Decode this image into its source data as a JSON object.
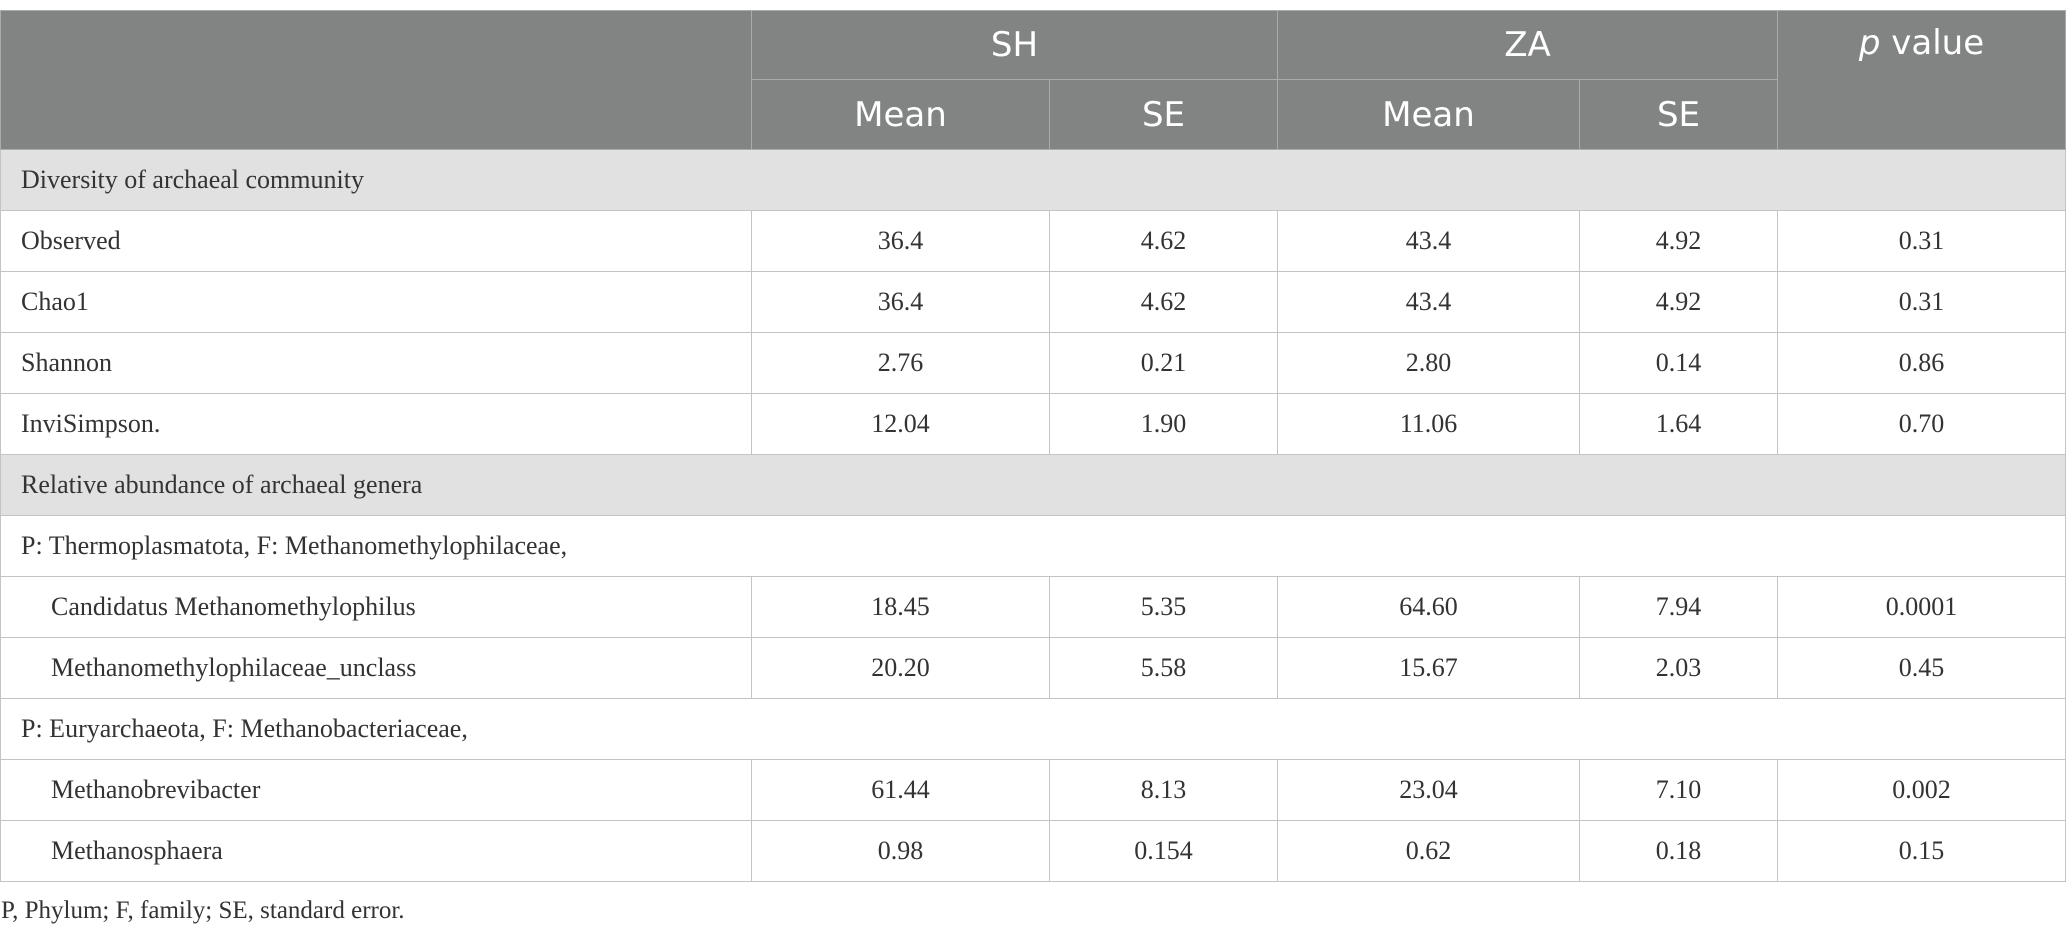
{
  "table": {
    "groups": [
      "SH",
      "ZA"
    ],
    "subheaders": [
      "Mean",
      "SE",
      "Mean",
      "SE"
    ],
    "p_header": {
      "italic": "p",
      "text": "value"
    },
    "sections": [
      {
        "title": "Diversity of archaeal community",
        "rows": [
          [
            "Observed",
            "36.4",
            "4.62",
            "43.4",
            "4.92",
            "0.31"
          ],
          [
            "Chao1",
            "36.4",
            "4.62",
            "43.4",
            "4.92",
            "0.31"
          ],
          [
            "Shannon",
            "2.76",
            "0.21",
            "2.80",
            "0.14",
            "0.86"
          ],
          [
            "InviSimpson.",
            "12.04",
            "1.90",
            "11.06",
            "1.64",
            "0.70"
          ]
        ]
      },
      {
        "title": "Relative abundance of archaeal genera",
        "subgroups": [
          {
            "title": "P: Thermoplasmatota, F: Methanomethylophilaceae,",
            "rows": [
              [
                "Candidatus Methanomethylophilus",
                "18.45",
                "5.35",
                "64.60",
                "7.94",
                "0.0001"
              ],
              [
                "Methanomethylophilaceae_unclass",
                "20.20",
                "5.58",
                "15.67",
                "2.03",
                "0.45"
              ]
            ]
          },
          {
            "title": "P: Euryarchaeota, F: Methanobacteriaceae,",
            "rows": [
              [
                "Methanobrevibacter",
                "61.44",
                "8.13",
                "23.04",
                "7.10",
                "0.002"
              ],
              [
                "Methanosphaera",
                "0.98",
                "0.154",
                "0.62",
                "0.18",
                "0.15"
              ]
            ]
          }
        ]
      }
    ]
  },
  "footnote": "P, Phylum; F, family; SE, standard error."
}
